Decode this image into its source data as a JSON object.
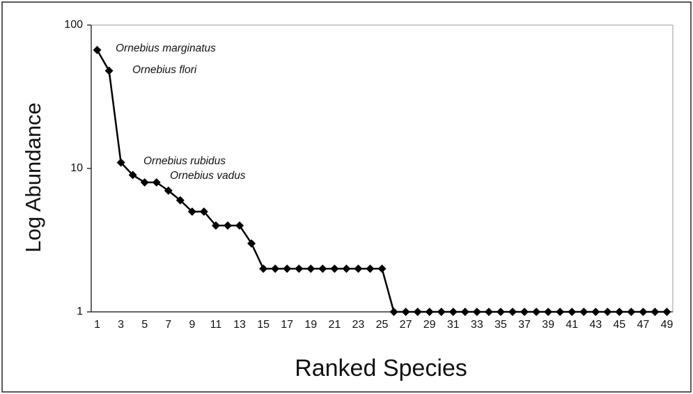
{
  "chart_data": {
    "type": "line",
    "xlabel": "Ranked Species",
    "ylabel": "Log Abundance",
    "categories": [
      "1",
      null,
      "3",
      null,
      "5",
      null,
      "7",
      null,
      "9",
      null,
      "11",
      null,
      "13",
      null,
      "15",
      null,
      "17",
      null,
      "19",
      null,
      "21",
      null,
      "23",
      null,
      "25",
      null,
      "27",
      null,
      "29",
      null,
      "31",
      null,
      "33",
      null,
      "35",
      null,
      "37",
      null,
      "39",
      null,
      "41",
      null,
      "43",
      null,
      "45",
      null,
      "47",
      null,
      "49"
    ],
    "series": [
      {
        "name": "Abundance",
        "color": "#000000",
        "values": [
          67,
          48,
          11,
          9,
          8,
          8,
          7,
          6,
          5,
          5,
          4,
          4,
          4,
          3,
          2,
          2,
          2,
          2,
          2,
          2,
          2,
          2,
          2,
          2,
          2,
          1,
          1,
          1,
          1,
          1,
          1,
          1,
          1,
          1,
          1,
          1,
          1,
          1,
          1,
          1,
          1,
          1,
          1,
          1,
          1,
          1,
          1,
          1,
          1
        ]
      }
    ],
    "annotations": [
      "Ornebius marginatus",
      "Ornebius flori",
      "Ornebius rubidus",
      "Ornebius vadus"
    ],
    "ylim": [
      1,
      100
    ],
    "yticks": [
      1,
      10,
      100
    ],
    "log_y": true,
    "grid": false,
    "legend": false
  }
}
